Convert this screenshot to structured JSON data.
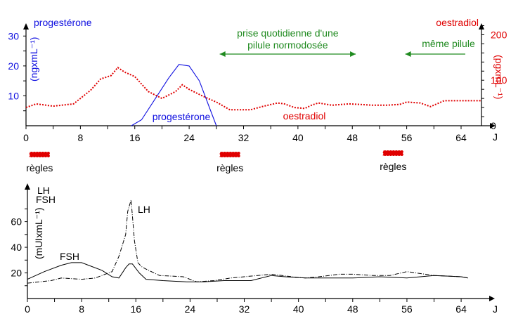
{
  "colors": {
    "progesterone": "#1010e0",
    "oestradiol": "#e00000",
    "annotation": "#1f8a1f",
    "hormones": "#000000",
    "regles_fill": "#e00000"
  },
  "chart_data": [
    {
      "type": "line",
      "x_unit_label": "J",
      "xlim": [
        0,
        67
      ],
      "x_ticks": [
        0,
        8,
        16,
        24,
        32,
        40,
        48,
        56,
        64
      ],
      "left_axis": {
        "title": "progestérone",
        "unit": "(ngxmL⁻¹)",
        "ylim": [
          0,
          35
        ],
        "ticks": [
          10,
          20,
          30
        ]
      },
      "right_axis": {
        "title": "oestradiol",
        "unit": "(pgxmL⁻¹)",
        "ylim": [
          0,
          230
        ],
        "ticks": [
          0,
          100,
          200
        ]
      },
      "series": [
        {
          "name": "progestérone",
          "axis": "left",
          "style": "solid",
          "x": [
            15.5,
            17,
            19,
            21,
            22.5,
            24,
            25.5,
            27,
            28
          ],
          "y": [
            0,
            2,
            9,
            16,
            20.5,
            20,
            15,
            6,
            0
          ]
        },
        {
          "name": "oestradiol",
          "axis": "right",
          "style": "dotted",
          "x": [
            0,
            1.5,
            4,
            7,
            9.5,
            11,
            12.5,
            13.5,
            14.5,
            16,
            18,
            20,
            22,
            23,
            24,
            26,
            28,
            30,
            33,
            35,
            37,
            38,
            39.5,
            41,
            42,
            43,
            45,
            47.5,
            49,
            51,
            53,
            55,
            56,
            58,
            59.5,
            61.5,
            64,
            67
          ],
          "y": [
            40,
            48,
            43,
            48,
            78,
            103,
            110,
            128,
            118,
            108,
            75,
            60,
            75,
            90,
            80,
            65,
            52,
            35,
            35,
            43,
            50,
            48,
            40,
            38,
            45,
            50,
            45,
            48,
            47,
            45,
            45,
            47,
            52,
            50,
            42,
            55,
            55,
            55
          ]
        }
      ],
      "annotations": [
        {
          "text": "prise quotidienne d'une pilule normodosée",
          "x_from": 28.5,
          "x_to": 48.5
        },
        {
          "text": "même pilule",
          "x_from": 56,
          "x_to": 64
        }
      ],
      "regles": [
        {
          "label": "règles",
          "x_from": 0.5,
          "x_to": 3.5
        },
        {
          "label": "règles",
          "x_from": 28.5,
          "x_to": 31.5
        },
        {
          "label": "règles",
          "x_from": 52.5,
          "x_to": 55.5
        }
      ]
    },
    {
      "type": "line",
      "x_unit_label": "J",
      "xlim": [
        0,
        67
      ],
      "x_ticks": [
        0,
        8,
        16,
        24,
        32,
        40,
        48,
        56,
        64
      ],
      "left_axis": {
        "title_lines": [
          "LH",
          "FSH"
        ],
        "unit": "(mUIxmL⁻¹)",
        "ylim": [
          0,
          85
        ],
        "ticks": [
          20,
          40,
          60
        ]
      },
      "series": [
        {
          "name": "LH",
          "style": "dashdot",
          "x": [
            0,
            3.5,
            5,
            8,
            10,
            12.5,
            13.5,
            14.5,
            14.8,
            15.3,
            15.8,
            16.3,
            16.8,
            17.5,
            19.5,
            23,
            25,
            27.5,
            30,
            34,
            36,
            39,
            41,
            43,
            46,
            48,
            51,
            53.5,
            56,
            60,
            64,
            65
          ],
          "y": [
            12,
            14,
            16,
            15,
            16,
            21,
            33,
            50,
            68,
            77,
            45,
            28,
            25,
            23,
            18,
            17,
            13,
            14,
            16,
            18,
            19,
            17,
            16,
            17,
            19,
            19,
            18,
            18,
            21,
            18,
            17,
            16
          ]
        },
        {
          "name": "FSH",
          "style": "solid",
          "x": [
            0,
            2.5,
            5,
            6.5,
            8,
            11,
            12.5,
            13.5,
            14.5,
            15,
            15.5,
            16.5,
            17.5,
            20,
            23.5,
            26,
            29,
            30.5,
            33,
            36,
            38,
            41,
            44,
            48,
            52,
            56,
            58,
            60,
            64,
            65
          ],
          "y": [
            15,
            21,
            26,
            28,
            28,
            22,
            17,
            16,
            24,
            27,
            27,
            20,
            15,
            14,
            13,
            13,
            14,
            14,
            14,
            18,
            17,
            16,
            16,
            16,
            17,
            16,
            17,
            18,
            17,
            16
          ]
        }
      ]
    }
  ],
  "labels": {
    "progesterone_curve": "progestérone",
    "oestradiol_curve": "oestradiol",
    "lh_curve": "LH",
    "fsh_curve": "FSH"
  }
}
